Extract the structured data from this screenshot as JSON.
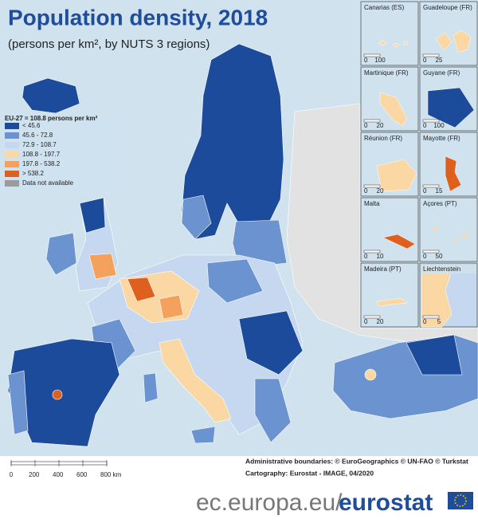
{
  "header": {
    "title": "Population density, 2018",
    "subtitle": "(persons per km², by NUTS 3 regions)"
  },
  "legend": {
    "title": "EU-27 = 108.8 persons per km²",
    "items": [
      {
        "label": "< 45.6",
        "color": "#1c4b9b"
      },
      {
        "label": "45.6 - 72.8",
        "color": "#6b93cf"
      },
      {
        "label": "72.9 - 108.7",
        "color": "#c6d8ef"
      },
      {
        "label": "108.8 - 197.7",
        "color": "#fbd7a3"
      },
      {
        "label": "197.8 - 538.2",
        "color": "#f3a15d"
      },
      {
        "label": "> 538.2",
        "color": "#de5f1e"
      },
      {
        "label": "Data not available",
        "color": "#9b9b9b"
      }
    ]
  },
  "insets": [
    {
      "label": "Canarias (ES)",
      "scale": [
        "0",
        "100"
      ]
    },
    {
      "label": "Guadeloupe (FR)",
      "scale": [
        "0",
        "25"
      ]
    },
    {
      "label": "Martinique (FR)",
      "scale": [
        "0",
        "20"
      ]
    },
    {
      "label": "Guyane (FR)",
      "scale": [
        "0",
        "100"
      ]
    },
    {
      "label": "Réunion (FR)",
      "scale": [
        "0",
        "20"
      ]
    },
    {
      "label": "Mayotte (FR)",
      "scale": [
        "0",
        "15"
      ]
    },
    {
      "label": "Malta",
      "scale": [
        "0",
        "10"
      ]
    },
    {
      "label": "Açores (PT)",
      "scale": [
        "0",
        "50"
      ]
    },
    {
      "label": "Madeira (PT)",
      "scale": [
        "0",
        "20"
      ]
    },
    {
      "label": "Liechtenstein",
      "scale": [
        "0",
        "5"
      ]
    }
  ],
  "scale_bar": [
    "0",
    "200",
    "400",
    "600",
    "800 km"
  ],
  "attribution": [
    "Administrative boundaries: © EuroGeographics © UN-FAO © Turkstat",
    "Cartography: Eurostat - IMAGE, 04/2020"
  ],
  "footer": {
    "domain": "ec.europa.eu/",
    "brand": "eurostat"
  }
}
